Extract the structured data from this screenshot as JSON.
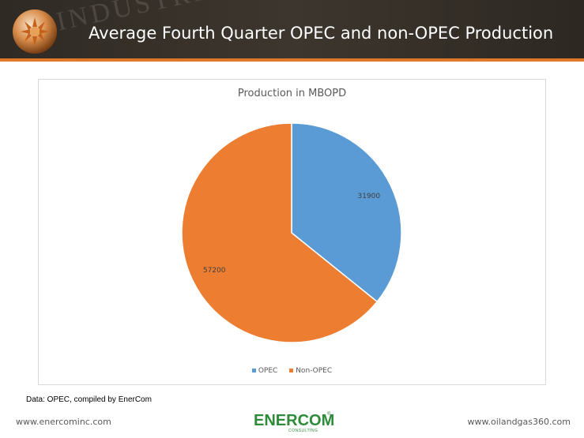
{
  "slide": {
    "title": "Average Fourth Quarter OPEC and non-OPEC Production",
    "header_deco_text": "INDUSTRI",
    "source": "Data: OPEC, compiled by EnerCom",
    "footer_left": "www.enercominc.com",
    "footer_right": "www.oilandgas360.com",
    "logo_word": "ENERCOM",
    "logo_sub": "CONSULTING",
    "logo_mark": "®"
  },
  "colors": {
    "opec": "#5b9bd5",
    "non_opec": "#ed7d31",
    "accent": "#e0782a"
  },
  "chart_data": {
    "type": "pie",
    "title": "Production in MBOPD",
    "categories": [
      "OPEC",
      "Non-OPEC"
    ],
    "values": [
      31900,
      57200
    ],
    "data_labels": [
      "31900",
      "57200"
    ],
    "legend": "bottom",
    "start_angle_deg": 0,
    "direction": "clockwise"
  }
}
